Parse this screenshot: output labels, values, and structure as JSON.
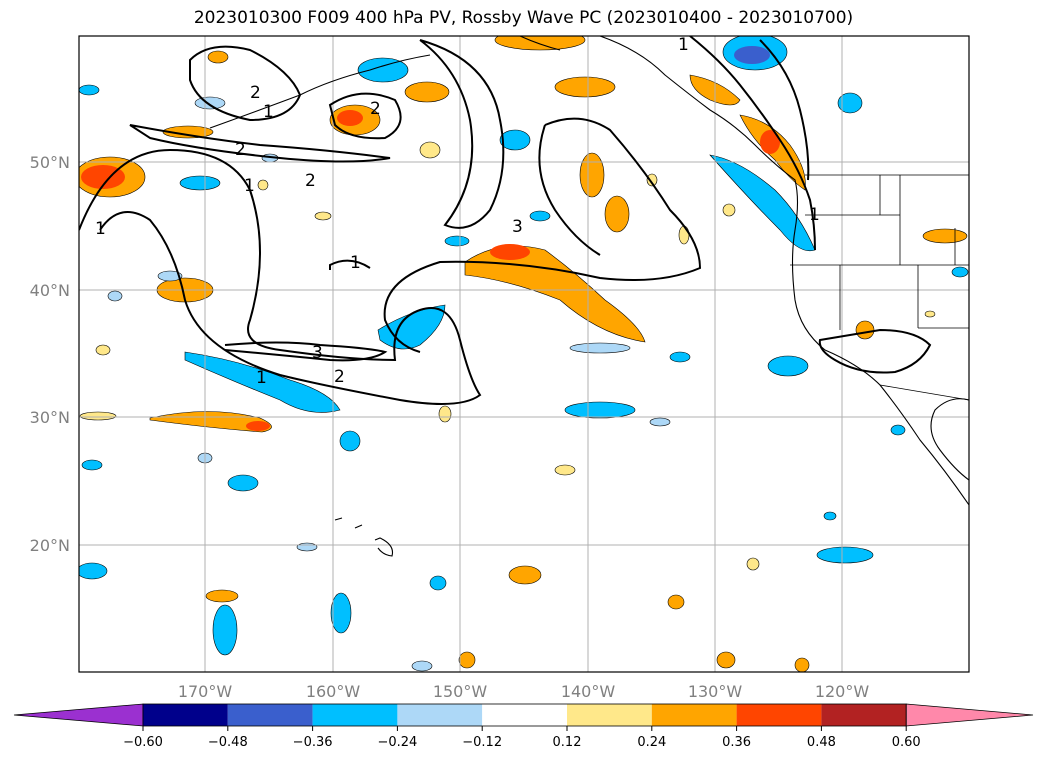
{
  "title": "2023010300 F009 400 hPa PV, Rossby Wave PC (2023010400 - 2023010700)",
  "lon_labels": [
    "170°W",
    "160°W",
    "150°W",
    "140°W",
    "130°W",
    "120°W"
  ],
  "lat_labels": [
    "50°N",
    "40°N",
    "30°N",
    "20°N"
  ],
  "colorbar": {
    "ticks": [
      "−0.60",
      "−0.48",
      "−0.36",
      "−0.24",
      "−0.12",
      "0.12",
      "0.24",
      "0.36",
      "0.48",
      "0.60"
    ],
    "colors": [
      "#9b30d0",
      "#00008b",
      "#3a5fcd",
      "#00bfff",
      "#add8f7",
      "#ffffff",
      "#ffe88a",
      "#ffa500",
      "#ff4500",
      "#b22222",
      "#ff88aa"
    ]
  },
  "contour_labels": [
    "1",
    "2",
    "2",
    "1",
    "2",
    "2",
    "1",
    "3",
    "1",
    "3",
    "2",
    "1",
    "1",
    "1"
  ]
}
